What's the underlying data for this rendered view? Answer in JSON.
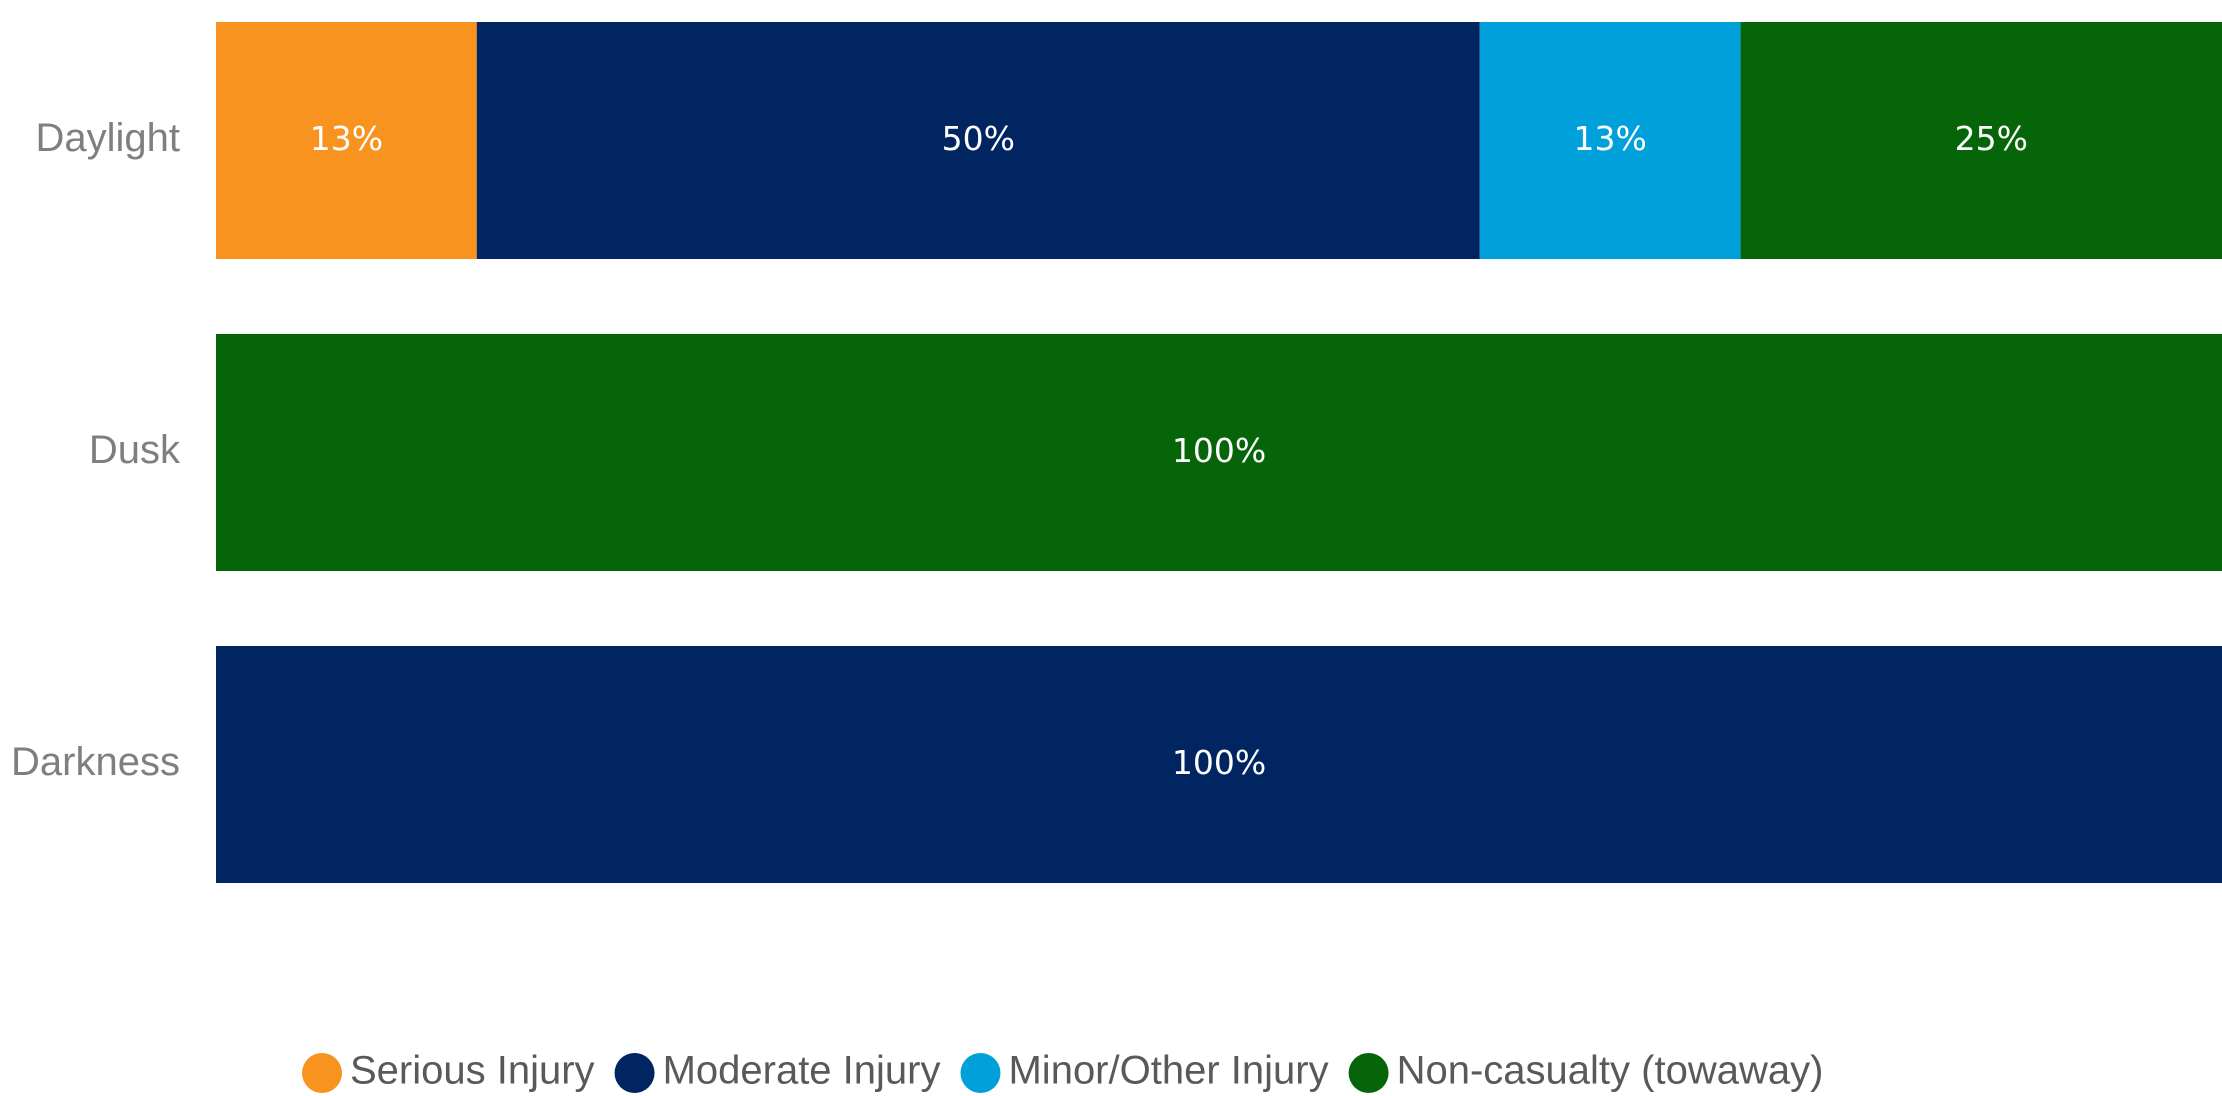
{
  "chart_data": {
    "type": "bar",
    "orientation": "horizontal",
    "stacked": "percent",
    "categories": [
      "Daylight",
      "Dusk",
      "Darkness"
    ],
    "series": [
      {
        "name": "Serious Injury",
        "color": "#f7931e",
        "values": [
          13,
          0,
          0
        ],
        "labels": [
          "13%",
          "",
          ""
        ]
      },
      {
        "name": "Moderate Injury",
        "color": "#002561",
        "values": [
          50,
          0,
          100
        ],
        "labels": [
          "50%",
          "",
          "100%"
        ]
      },
      {
        "name": "Minor/Other Injury",
        "color": "#00a0da",
        "values": [
          13,
          0,
          0
        ],
        "labels": [
          "13%",
          "",
          ""
        ]
      },
      {
        "name": "Non-casualty (towaway)",
        "color": "#066409",
        "values": [
          25,
          100,
          0
        ],
        "labels": [
          "25%",
          "100%",
          ""
        ]
      }
    ],
    "xlim": [
      0,
      100
    ],
    "grid": false,
    "legend_position": "bottom",
    "title": "",
    "xlabel": "",
    "ylabel": ""
  }
}
